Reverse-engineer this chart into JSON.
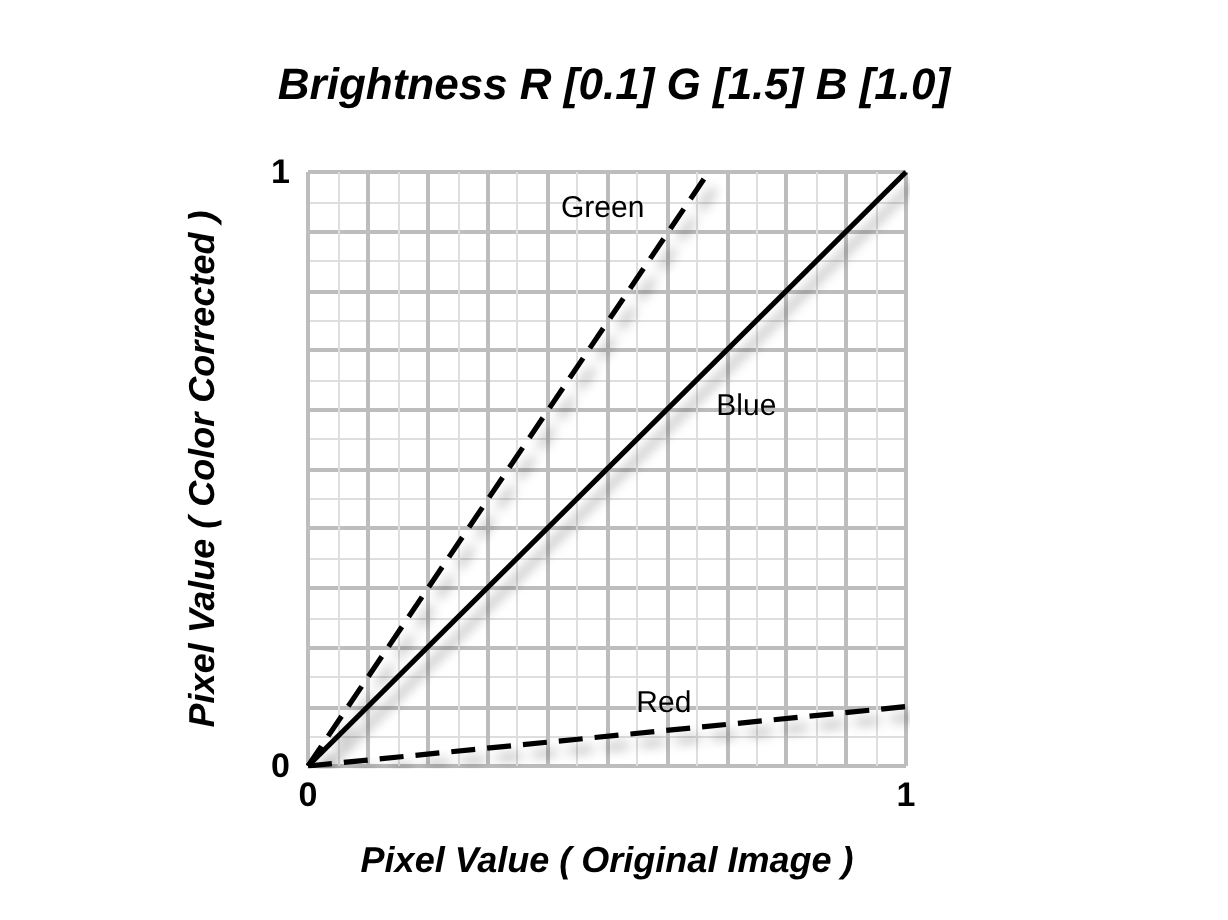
{
  "chart_data": {
    "type": "line",
    "title": "Brightness R [0.1] G [1.5] B [1.0]",
    "xlabel": "Pixel Value ( Original Image )",
    "ylabel": "Pixel Value ( Color Corrected )",
    "series": [
      {
        "name": "Green",
        "color": "#000000",
        "line_style": "dashed",
        "x": [
          0,
          0.67
        ],
        "values": [
          0,
          1
        ]
      },
      {
        "name": "Blue",
        "color": "#000000",
        "line_style": "solid",
        "x": [
          0,
          1
        ],
        "values": [
          0,
          1
        ]
      },
      {
        "name": "Red",
        "color": "#000000",
        "line_style": "dashed",
        "x": [
          0,
          1
        ],
        "values": [
          0,
          0.1
        ]
      }
    ],
    "xlim": [
      0,
      1
    ],
    "ylim": [
      0,
      1
    ],
    "xticks": [
      0,
      {
        "value": 0.1,
        "label": null
      },
      {
        "value": 0.2,
        "label": null
      },
      {
        "value": 0.3,
        "label": null
      },
      {
        "value": 0.4,
        "label": null
      },
      {
        "value": 0.5,
        "label": null
      },
      {
        "value": 0.6,
        "label": null
      },
      {
        "value": 0.7,
        "label": null
      },
      {
        "value": 0.8,
        "label": null
      },
      {
        "value": 0.9,
        "label": null
      },
      1
    ],
    "yticks": [
      0,
      {
        "value": 0.1,
        "label": null
      },
      {
        "value": 0.2,
        "label": null
      },
      {
        "value": 0.3,
        "label": null
      },
      {
        "value": 0.4,
        "label": null
      },
      {
        "value": 0.5,
        "label": null
      },
      {
        "value": 0.6,
        "label": null
      },
      {
        "value": 0.7,
        "label": null
      },
      {
        "value": 0.8,
        "label": null
      },
      {
        "value": 0.9,
        "label": null
      },
      1
    ],
    "grid": true,
    "marker": "none"
  }
}
